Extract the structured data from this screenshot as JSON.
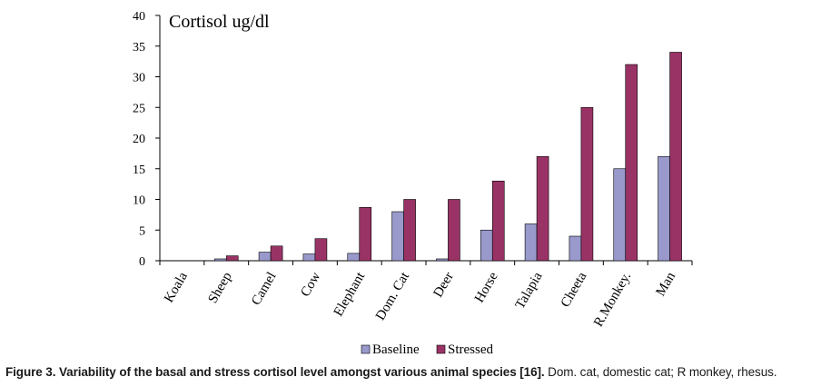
{
  "chart_data": {
    "type": "bar",
    "title": "Cortisol ug/dl",
    "categories": [
      "Koala",
      "Sheep",
      "Camel",
      "Cow",
      "Elephant",
      "Dom. Cat",
      "Deer",
      "Horse",
      "Talapia",
      "Cheeta",
      "R.Monkey.",
      "Man"
    ],
    "series": [
      {
        "name": "Baseline",
        "color": "#9999cc",
        "values": [
          0,
          0.3,
          1.4,
          1.1,
          1.2,
          8,
          0.3,
          5,
          6,
          4,
          15,
          17
        ]
      },
      {
        "name": "Stressed",
        "color": "#993366",
        "values": [
          0,
          0.8,
          2.4,
          3.6,
          8.7,
          10,
          10,
          13,
          17,
          25,
          32,
          34
        ]
      }
    ],
    "ylim": [
      0,
      40
    ],
    "yticks": [
      0,
      5,
      10,
      15,
      20,
      25,
      30,
      35,
      40
    ],
    "grid": false,
    "legend": "bottom"
  },
  "caption": {
    "bold": "Figure 3. Variability of the basal and stress cortisol level amongst various animal species [16].",
    "rest": " Dom. cat, domestic cat; R monkey, rhesus."
  }
}
